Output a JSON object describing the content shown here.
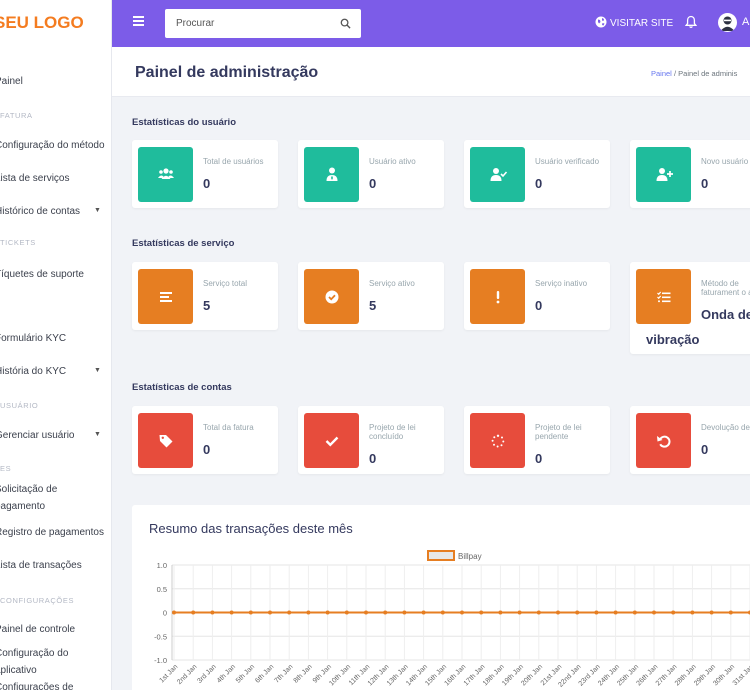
{
  "sidebar": {
    "logo": "SEU LOGO",
    "items": [
      {
        "kind": "item",
        "label": "Painel"
      },
      {
        "kind": "head",
        "label": "FATURA"
      },
      {
        "kind": "item",
        "label": "Configuração do método"
      },
      {
        "kind": "item",
        "label": "Lista de serviços"
      },
      {
        "kind": "item",
        "label": "Histórico de contas",
        "caret": true
      },
      {
        "kind": "head",
        "label": "TICKETS"
      },
      {
        "kind": "item",
        "label": "Tíquetes de suporte"
      },
      {
        "kind": "item",
        "label": "Formulário KYC"
      },
      {
        "kind": "item",
        "label": "História do KYC",
        "caret": true
      },
      {
        "kind": "head",
        "label": "USUÁRIO"
      },
      {
        "kind": "item",
        "label": "Gerenciar usuário",
        "caret": true
      },
      {
        "kind": "head",
        "label": "ES"
      },
      {
        "kind": "item",
        "label": "Solicitação de"
      },
      {
        "kind": "item",
        "label": "pagamento"
      },
      {
        "kind": "item",
        "label": "Registro de pagamentos"
      },
      {
        "kind": "item",
        "label": "Lista de transações"
      },
      {
        "kind": "head",
        "label": "CONFIGURAÇÕES"
      },
      {
        "kind": "item",
        "label": "Painel de controle"
      },
      {
        "kind": "item",
        "label": "Configuração do"
      },
      {
        "kind": "item",
        "label": "aplicativo"
      },
      {
        "kind": "item",
        "label": "Configurações de"
      }
    ]
  },
  "topbar": {
    "search_placeholder": "Procurar",
    "visit_site": "VISITAR SITE",
    "user_initial": "A"
  },
  "header": {
    "title": "Painel de administração",
    "breadcrumb_home": "Painel",
    "breadcrumb_sep": "/",
    "breadcrumb_current": "Painel de adminis"
  },
  "sections": [
    {
      "title": "Estatísticas do usuário",
      "color": "#1fbc9c",
      "cards": [
        {
          "label": "Total de usuários",
          "value": "0",
          "icon": "users-icon"
        },
        {
          "label": "Usuário ativo",
          "value": "0",
          "icon": "user-tie-icon"
        },
        {
          "label": "Usuário verificado",
          "value": "0",
          "icon": "user-check-icon"
        },
        {
          "label": "Novo usuário",
          "value": "0",
          "icon": "user-plus-icon"
        }
      ]
    },
    {
      "title": "Estatísticas de serviço",
      "color": "#e67e22",
      "cards": [
        {
          "label": "Serviço total",
          "value": "5",
          "icon": "list-icon"
        },
        {
          "label": "Serviço ativo",
          "value": "5",
          "icon": "check-circle-icon"
        },
        {
          "label": "Serviço inativo",
          "value": "0",
          "icon": "exclamation-icon"
        },
        {
          "label": "Método de faturament o ativo",
          "value": "Onda de",
          "value2": "vibração",
          "icon": "tasks-icon"
        }
      ]
    },
    {
      "title": "Estatísticas de contas",
      "color": "#e74c3c",
      "cards": [
        {
          "label": "Total da fatura",
          "value": "0",
          "icon": "tag-icon"
        },
        {
          "label": "Projeto de lei concluído",
          "value": "0",
          "icon": "check-icon"
        },
        {
          "label": "Projeto de lei pendente",
          "value": "0",
          "icon": "spinner-icon"
        },
        {
          "label": "Devolução de conta",
          "value": "0",
          "icon": "undo-icon"
        }
      ]
    }
  ],
  "chart": {
    "title": "Resumo das transações deste mês"
  },
  "chart_data": {
    "type": "line",
    "title": "Resumo das transações deste mês",
    "series": [
      {
        "name": "Billpay",
        "color": "#e67e22",
        "values": [
          0,
          0,
          0,
          0,
          0,
          0,
          0,
          0,
          0,
          0,
          0,
          0,
          0,
          0,
          0,
          0,
          0,
          0,
          0,
          0,
          0,
          0,
          0,
          0,
          0,
          0,
          0,
          0,
          0,
          0,
          0
        ]
      }
    ],
    "x": [
      "1st Jan",
      "2nd Jan",
      "3rd Jan",
      "4th Jan",
      "5th Jan",
      "6th Jan",
      "7th Jan",
      "8th Jan",
      "9th Jan",
      "10th Jan",
      "11th Jan",
      "12th Jan",
      "13th Jan",
      "14th Jan",
      "15th Jan",
      "16th Jan",
      "17th Jan",
      "18th Jan",
      "19th Jan",
      "20th Jan",
      "21st Jan",
      "22nd Jan",
      "23rd Jan",
      "24th Jan",
      "25th Jan",
      "26th Jan",
      "27th Jan",
      "28th Jan",
      "29th Jan",
      "30th Jan",
      "31st Jan"
    ],
    "yticks": [
      "1.0",
      "0.5",
      "0",
      "-0.5",
      "-1.0"
    ],
    "ylim": [
      -1,
      1
    ],
    "grid": true,
    "legend": "top-center"
  }
}
